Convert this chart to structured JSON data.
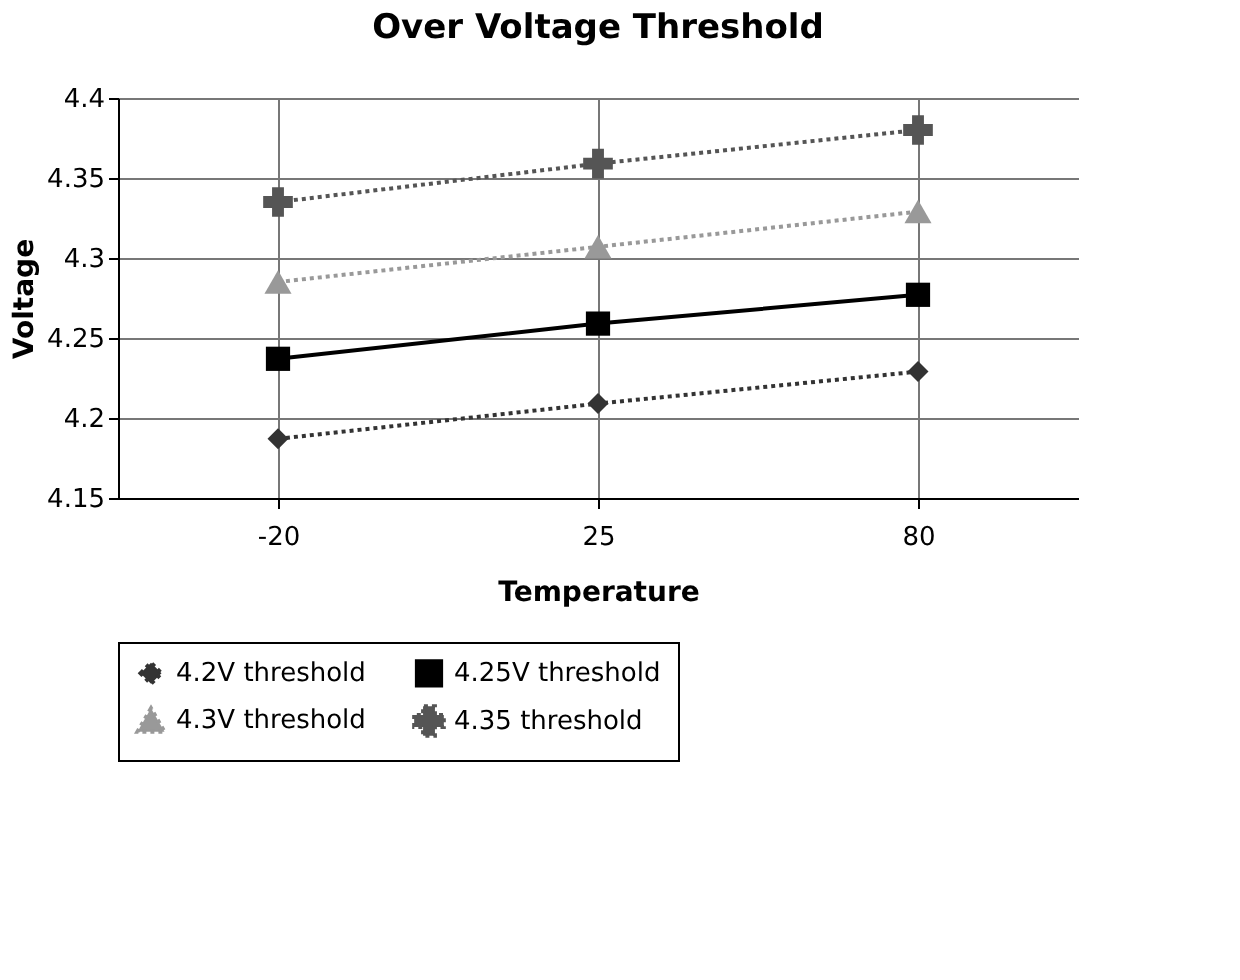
{
  "chart_data": {
    "type": "line",
    "title": "Over Voltage Threshold",
    "xlabel": "Temperature",
    "ylabel": "Voltage",
    "categories": [
      "-20",
      "25",
      "80"
    ],
    "series": [
      {
        "name": "4.2V threshold",
        "color": "#333333",
        "values": [
          4.187,
          4.209,
          4.229
        ],
        "marker": "diamond",
        "line_style": "dotted"
      },
      {
        "name": "4.25V threshold",
        "color": "#000000",
        "values": [
          4.237,
          4.259,
          4.277
        ],
        "marker": "square",
        "line_style": "solid"
      },
      {
        "name": "4.3V threshold",
        "color": "#999999",
        "values": [
          4.285,
          4.307,
          4.329
        ],
        "marker": "triangle",
        "line_style": "dotted"
      },
      {
        "name": "4.35   threshold",
        "color": "#555555",
        "values": [
          4.335,
          4.359,
          4.38
        ],
        "marker": "cross",
        "line_style": "dotted"
      }
    ],
    "ylim": [
      4.15,
      4.4
    ],
    "yticks": [
      4.15,
      4.2,
      4.25,
      4.3,
      4.35,
      4.4
    ],
    "grid": true,
    "legend": "bottom"
  }
}
